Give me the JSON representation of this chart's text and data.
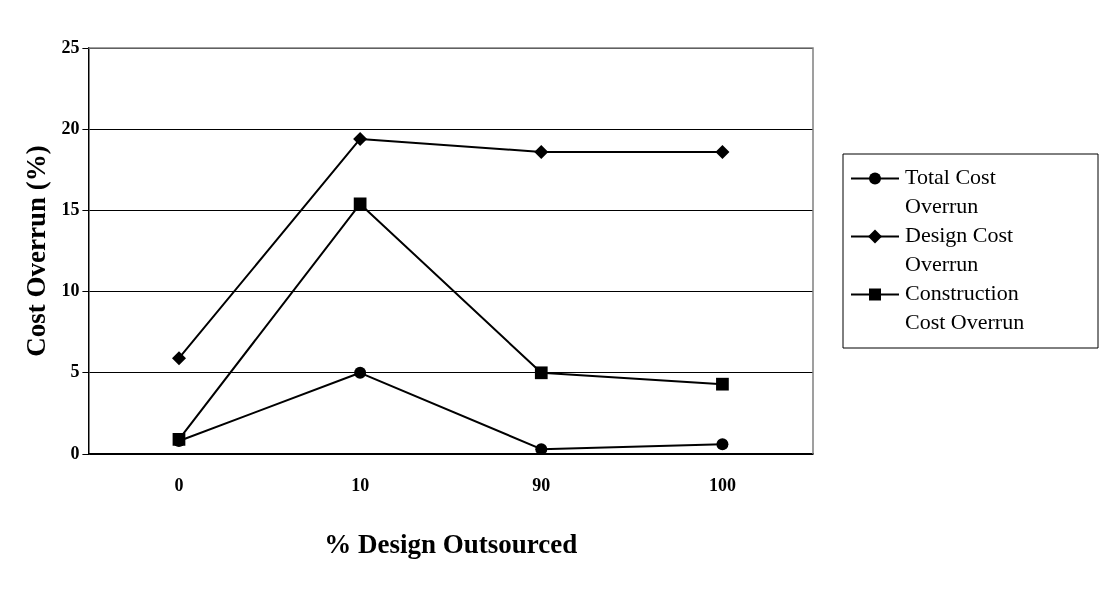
{
  "chart_data": {
    "type": "line",
    "xlabel": "% Design Outsourced",
    "ylabel": "Cost Overrun (%)",
    "categories": [
      "0",
      "10",
      "90",
      "100"
    ],
    "series": [
      {
        "name": "Total Cost Overrun",
        "color": "#000000",
        "marker": "circle",
        "values": [
          0.8,
          5.0,
          0.3,
          0.6
        ]
      },
      {
        "name": "Design Cost Overrun",
        "color": "#000000",
        "marker": "diamond",
        "values": [
          5.9,
          19.4,
          18.6,
          18.6
        ]
      },
      {
        "name": "Construction Cost Overrun",
        "color": "#000000",
        "marker": "square",
        "values": [
          0.9,
          15.4,
          5.0,
          4.3
        ]
      }
    ],
    "ylim": [
      0,
      25
    ],
    "yticks": [
      0,
      5,
      10,
      15,
      20,
      25
    ],
    "grid": "y",
    "legend": "right"
  }
}
